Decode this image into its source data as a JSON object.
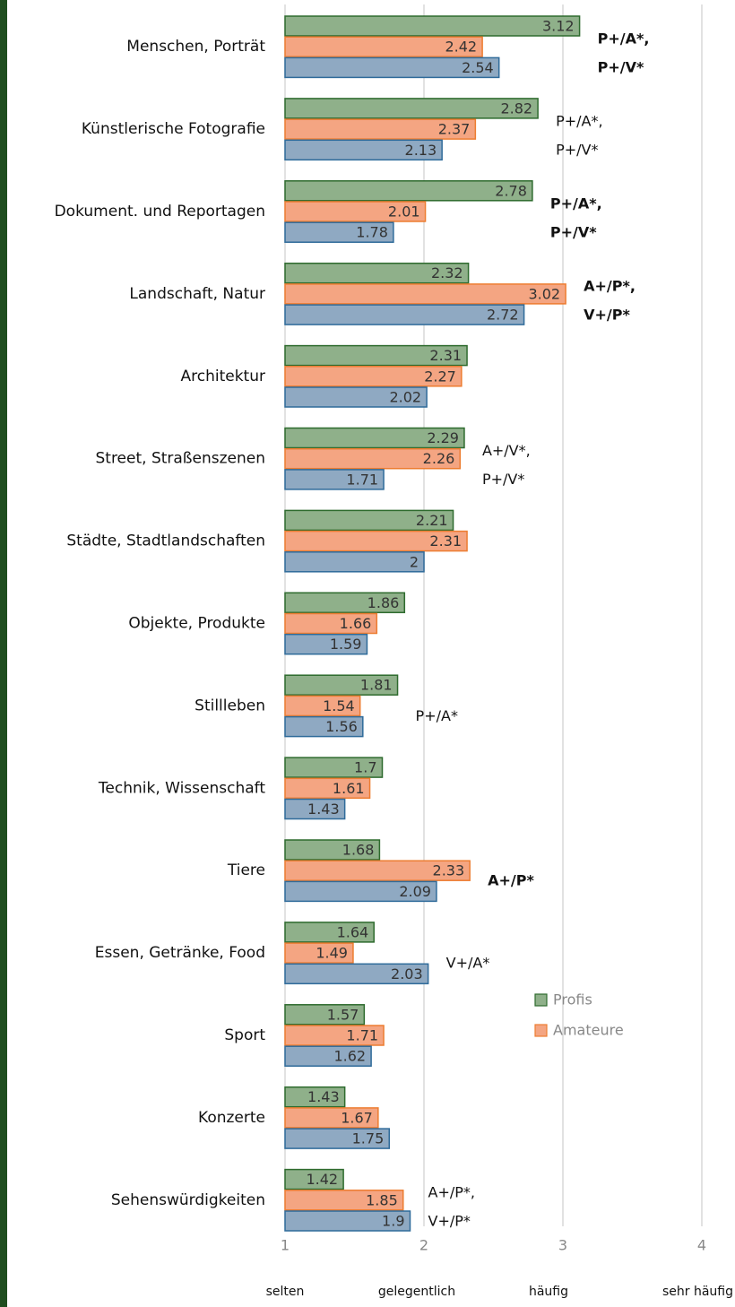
{
  "chart_data": {
    "type": "barh",
    "categories": [
      "Menschen, Porträt",
      "Künstlerische Fotografie",
      "Dokument. und Reportagen",
      "Landschaft, Natur",
      "Architektur",
      "Street, Straßenszenen",
      "Städte, Stadtlandschaften",
      "Objekte, Produkte",
      "Stillleben",
      "Technik, Wissenschaft",
      "Tiere",
      "Essen, Getränke, Food",
      "Sport",
      "Konzerte",
      "Sehenswürdigkeiten"
    ],
    "series": [
      {
        "name": "Profis",
        "color": "#8fb08a",
        "stroke": "#2e6b2e",
        "values": [
          3.12,
          2.82,
          2.78,
          2.32,
          2.31,
          2.29,
          2.21,
          1.86,
          1.81,
          1.7,
          1.68,
          1.64,
          1.57,
          1.43,
          1.42
        ]
      },
      {
        "name": "Amateure",
        "color": "#f4a582",
        "stroke": "#ed7d31",
        "values": [
          2.42,
          2.37,
          2.01,
          3.02,
          2.27,
          2.26,
          2.31,
          1.66,
          1.54,
          1.61,
          2.33,
          1.49,
          1.71,
          1.67,
          1.85
        ]
      },
      {
        "color": "#8fa9c2",
        "stroke": "#2f6b9a",
        "values": [
          2.54,
          2.13,
          1.78,
          2.72,
          2.02,
          1.71,
          2,
          1.59,
          1.56,
          1.43,
          2.09,
          2.03,
          1.62,
          1.75,
          1.9
        ]
      }
    ],
    "annotations": [
      {
        "lines": [
          "P+/A*,",
          "P+/V*"
        ],
        "bold": true
      },
      {
        "lines": [
          "P+/A*,",
          "P+/V*"
        ],
        "bold": false
      },
      {
        "lines": [
          "P+/A*,",
          "P+/V*"
        ],
        "bold": true
      },
      {
        "lines": [
          "A+/P*,",
          "V+/P*"
        ],
        "bold": true
      },
      null,
      {
        "lines": [
          "A+/V*,",
          "P+/V*"
        ],
        "bold": false
      },
      null,
      null,
      {
        "lines": [
          "P+/A*"
        ],
        "bold": false
      },
      null,
      {
        "lines": [
          "A+/P*"
        ],
        "bold": true
      },
      {
        "lines": [
          "V+/A*"
        ],
        "bold": false
      },
      null,
      null,
      {
        "lines": [
          "A+/P*,",
          "V+/P*"
        ],
        "bold": false
      }
    ],
    "xlim": [
      1,
      4
    ],
    "xticks": [
      1,
      2,
      3,
      4
    ],
    "xtick_descriptions": [
      "selten",
      "gelegentlich",
      "häufig",
      "sehr häufig"
    ],
    "grid": true,
    "legend": "center right"
  }
}
